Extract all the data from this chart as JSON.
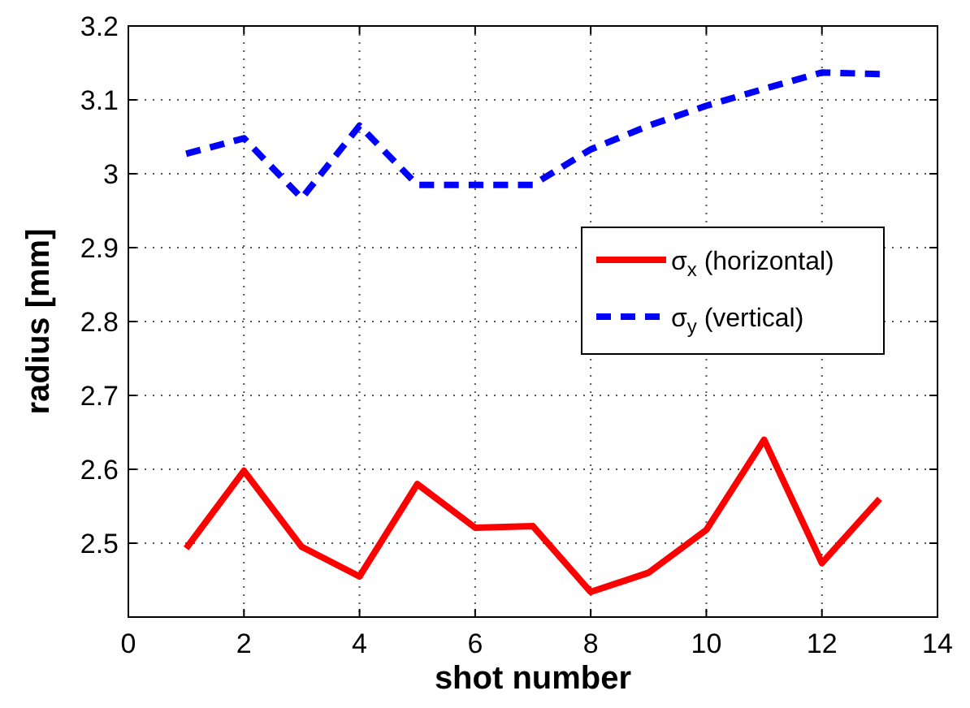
{
  "chart_data": {
    "type": "line",
    "xlabel": "shot number",
    "ylabel": "radius [mm]",
    "x": [
      1,
      2,
      3,
      4,
      5,
      6,
      7,
      8,
      9,
      10,
      11,
      12,
      13
    ],
    "series": [
      {
        "name": "σ$_{x}$ (horizontal)",
        "color": "#ff0000",
        "line_style": "solid",
        "values": [
          2.493,
          2.598,
          2.495,
          2.455,
          2.58,
          2.521,
          2.523,
          2.434,
          2.46,
          2.518,
          2.64,
          2.473,
          2.56
        ]
      },
      {
        "name": "σ$_{y}$ (vertical)",
        "color": "#0000ff",
        "line_style": "dashed",
        "values": [
          3.027,
          3.048,
          2.967,
          3.065,
          2.985,
          2.985,
          2.985,
          3.033,
          3.065,
          3.092,
          3.115,
          3.137,
          3.135
        ]
      }
    ],
    "xlim": [
      0,
      14
    ],
    "xticks": [
      0,
      2,
      4,
      6,
      8,
      10,
      12,
      14
    ],
    "ylim": [
      2.4,
      3.2
    ],
    "yticks": [
      2.5,
      2.6,
      2.7,
      2.8,
      2.9,
      3,
      3.1,
      3.2
    ],
    "grid": true,
    "legend": "right",
    "marker": "none"
  }
}
